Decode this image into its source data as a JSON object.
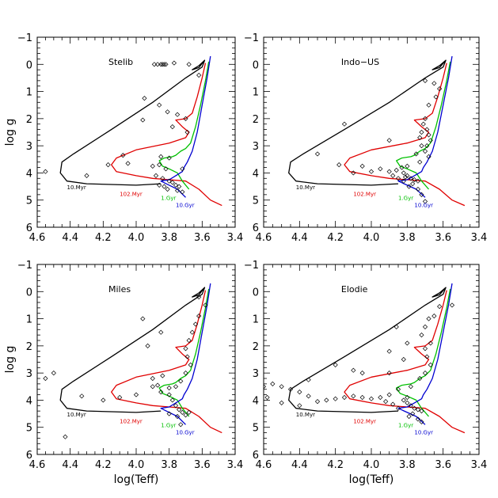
{
  "chart_data": {
    "type": "scatter",
    "xlabel": "log(Teff)",
    "ylabel": "log g",
    "xlim": [
      4.6,
      3.4
    ],
    "ylim": [
      -1,
      6
    ],
    "xticks": [
      "4.6",
      "4.4",
      "4.2",
      "4.0",
      "3.8",
      "3.6",
      "3.4"
    ],
    "yticks": [
      "−1",
      "0",
      "1",
      "2",
      "3",
      "4",
      "5",
      "6"
    ],
    "isochrones": [
      {
        "name": "10.Myr",
        "color": "#000000",
        "points": [
          [
            3.585,
            -0.15
          ],
          [
            3.62,
            0.05
          ],
          [
            3.66,
            0.2
          ],
          [
            3.62,
            0.12
          ],
          [
            3.585,
            -0.15
          ],
          [
            3.6,
            0.1
          ],
          [
            3.65,
            0.3
          ],
          [
            3.7,
            0.5
          ],
          [
            3.9,
            1.4
          ],
          [
            4.15,
            2.4
          ],
          [
            4.38,
            3.3
          ],
          [
            4.45,
            3.6
          ],
          [
            4.46,
            4.0
          ],
          [
            4.42,
            4.3
          ],
          [
            4.3,
            4.4
          ],
          [
            4.0,
            4.45
          ],
          [
            3.85,
            4.4
          ]
        ]
      },
      {
        "name": "102.Myr",
        "color": "#e00000",
        "points": [
          [
            3.58,
            -0.05
          ],
          [
            3.6,
            0.5
          ],
          [
            3.63,
            1.2
          ],
          [
            3.66,
            1.8
          ],
          [
            3.7,
            2.0
          ],
          [
            3.76,
            2.05
          ],
          [
            3.72,
            2.3
          ],
          [
            3.68,
            2.5
          ],
          [
            3.7,
            2.7
          ],
          [
            3.8,
            2.9
          ],
          [
            4.0,
            3.15
          ],
          [
            4.12,
            3.45
          ],
          [
            4.15,
            3.7
          ],
          [
            4.12,
            3.95
          ],
          [
            4.0,
            4.1
          ],
          [
            3.9,
            4.2
          ],
          [
            3.8,
            4.25
          ],
          [
            3.7,
            4.3
          ],
          [
            3.62,
            4.6
          ],
          [
            3.55,
            5.0
          ],
          [
            3.48,
            5.2
          ]
        ]
      },
      {
        "name": "1.Gyr",
        "color": "#00c000",
        "points": [
          [
            3.56,
            -0.1
          ],
          [
            3.58,
            0.6
          ],
          [
            3.61,
            1.5
          ],
          [
            3.64,
            2.3
          ],
          [
            3.67,
            2.9
          ],
          [
            3.7,
            3.1
          ],
          [
            3.73,
            3.2
          ],
          [
            3.76,
            3.35
          ],
          [
            3.78,
            3.4
          ],
          [
            3.83,
            3.45
          ],
          [
            3.86,
            3.55
          ],
          [
            3.84,
            3.75
          ],
          [
            3.8,
            3.85
          ],
          [
            3.75,
            4.0
          ],
          [
            3.72,
            4.3
          ],
          [
            3.68,
            4.6
          ]
        ]
      },
      {
        "name": "10.Gyr",
        "color": "#0000d0",
        "points": [
          [
            3.55,
            -0.3
          ],
          [
            3.57,
            0.5
          ],
          [
            3.6,
            1.5
          ],
          [
            3.63,
            2.5
          ],
          [
            3.66,
            3.2
          ],
          [
            3.69,
            3.6
          ],
          [
            3.71,
            3.8
          ],
          [
            3.72,
            3.95
          ],
          [
            3.76,
            4.1
          ],
          [
            3.8,
            4.25
          ],
          [
            3.85,
            4.3
          ],
          [
            3.8,
            4.45
          ],
          [
            3.75,
            4.6
          ],
          [
            3.7,
            4.9
          ]
        ]
      }
    ],
    "panels": [
      {
        "title": "Stelib",
        "points": [
          [
            3.89,
            0.0
          ],
          [
            3.87,
            0.0
          ],
          [
            3.85,
            0.0
          ],
          [
            3.84,
            0.0
          ],
          [
            3.83,
            0.0
          ],
          [
            3.82,
            0.0
          ],
          [
            3.77,
            -0.05
          ],
          [
            3.68,
            0.0
          ],
          [
            3.62,
            0.4
          ],
          [
            3.95,
            1.25
          ],
          [
            3.86,
            1.5
          ],
          [
            3.81,
            1.75
          ],
          [
            3.75,
            1.85
          ],
          [
            3.7,
            2.0
          ],
          [
            3.96,
            2.05
          ],
          [
            3.78,
            2.3
          ],
          [
            3.69,
            2.5
          ],
          [
            4.08,
            3.35
          ],
          [
            3.85,
            3.4
          ],
          [
            3.8,
            3.45
          ],
          [
            4.17,
            3.7
          ],
          [
            4.05,
            3.65
          ],
          [
            3.9,
            3.75
          ],
          [
            3.86,
            3.7
          ],
          [
            3.82,
            3.85
          ],
          [
            3.72,
            3.85
          ],
          [
            4.55,
            3.95
          ],
          [
            4.3,
            4.1
          ],
          [
            3.88,
            4.1
          ],
          [
            3.84,
            4.2
          ],
          [
            3.8,
            4.3
          ],
          [
            3.78,
            4.35
          ],
          [
            3.76,
            4.45
          ],
          [
            3.74,
            4.5
          ],
          [
            3.81,
            4.6
          ],
          [
            3.75,
            4.65
          ],
          [
            3.72,
            4.7
          ],
          [
            3.86,
            4.45
          ],
          [
            3.83,
            4.5
          ]
        ]
      },
      {
        "title": "Indo−US",
        "points": [
          [
            3.7,
            0.6
          ],
          [
            3.65,
            0.7
          ],
          [
            3.62,
            0.9
          ],
          [
            3.64,
            1.2
          ],
          [
            3.68,
            1.5
          ],
          [
            3.7,
            2.0
          ],
          [
            3.71,
            2.2
          ],
          [
            3.69,
            2.4
          ],
          [
            3.68,
            2.6
          ],
          [
            3.67,
            2.8
          ],
          [
            3.69,
            3.0
          ],
          [
            3.7,
            3.2
          ],
          [
            3.68,
            3.4
          ],
          [
            3.72,
            2.5
          ],
          [
            3.73,
            2.7
          ],
          [
            3.72,
            3.0
          ],
          [
            3.75,
            3.3
          ],
          [
            3.73,
            3.6
          ],
          [
            3.8,
            3.75
          ],
          [
            3.83,
            3.8
          ],
          [
            3.86,
            3.9
          ],
          [
            3.9,
            3.95
          ],
          [
            3.95,
            3.85
          ],
          [
            4.0,
            3.95
          ],
          [
            4.05,
            3.75
          ],
          [
            4.1,
            4.0
          ],
          [
            4.18,
            3.7
          ],
          [
            4.3,
            3.3
          ],
          [
            4.15,
            2.2
          ],
          [
            3.9,
            2.8
          ],
          [
            3.82,
            4.0
          ],
          [
            3.8,
            4.1
          ],
          [
            3.78,
            4.2
          ],
          [
            3.76,
            4.25
          ],
          [
            3.74,
            4.3
          ],
          [
            3.77,
            4.4
          ],
          [
            3.79,
            4.5
          ],
          [
            3.74,
            4.6
          ],
          [
            3.72,
            4.8
          ],
          [
            3.7,
            5.05
          ],
          [
            3.82,
            4.3
          ],
          [
            3.85,
            4.2
          ],
          [
            3.88,
            4.1
          ],
          [
            3.81,
            4.15
          ]
        ]
      },
      {
        "title": "Miles",
        "points": [
          [
            3.62,
            0.2
          ],
          [
            3.58,
            0.5
          ],
          [
            3.62,
            0.9
          ],
          [
            3.64,
            1.2
          ],
          [
            3.66,
            1.5
          ],
          [
            3.68,
            1.8
          ],
          [
            3.7,
            2.1
          ],
          [
            3.69,
            2.4
          ],
          [
            3.67,
            2.7
          ],
          [
            3.7,
            3.0
          ],
          [
            3.73,
            3.3
          ],
          [
            3.76,
            3.5
          ],
          [
            3.8,
            3.55
          ],
          [
            3.85,
            3.7
          ],
          [
            3.9,
            3.5
          ],
          [
            4.0,
            3.8
          ],
          [
            4.1,
            3.9
          ],
          [
            4.2,
            4.0
          ],
          [
            4.33,
            3.85
          ],
          [
            4.5,
            3.0
          ],
          [
            4.55,
            3.2
          ],
          [
            3.96,
            1.0
          ],
          [
            3.93,
            2.0
          ],
          [
            3.85,
            1.5
          ],
          [
            3.84,
            3.1
          ],
          [
            3.8,
            3.8
          ],
          [
            3.78,
            4.0
          ],
          [
            3.76,
            4.2
          ],
          [
            3.74,
            4.35
          ],
          [
            3.72,
            4.45
          ],
          [
            3.7,
            4.55
          ],
          [
            3.68,
            4.45
          ],
          [
            3.8,
            4.5
          ],
          [
            3.75,
            4.6
          ],
          [
            3.73,
            4.9
          ],
          [
            4.43,
            5.35
          ],
          [
            3.87,
            3.45
          ],
          [
            3.9,
            3.2
          ]
        ]
      },
      {
        "title": "Elodie",
        "points": [
          [
            3.55,
            0.5
          ],
          [
            3.62,
            0.55
          ],
          [
            3.65,
            0.9
          ],
          [
            3.68,
            1.0
          ],
          [
            3.7,
            1.3
          ],
          [
            3.72,
            1.6
          ],
          [
            3.67,
            1.9
          ],
          [
            3.7,
            2.1
          ],
          [
            3.69,
            2.4
          ],
          [
            3.67,
            2.7
          ],
          [
            3.7,
            3.0
          ],
          [
            3.73,
            3.2
          ],
          [
            3.78,
            3.5
          ],
          [
            3.85,
            3.6
          ],
          [
            3.9,
            3.8
          ],
          [
            3.95,
            3.9
          ],
          [
            4.0,
            3.95
          ],
          [
            4.05,
            3.9
          ],
          [
            4.1,
            3.85
          ],
          [
            4.15,
            3.9
          ],
          [
            4.2,
            3.95
          ],
          [
            4.25,
            4.0
          ],
          [
            4.3,
            4.05
          ],
          [
            4.35,
            3.85
          ],
          [
            4.4,
            3.7
          ],
          [
            4.45,
            3.6
          ],
          [
            4.5,
            3.5
          ],
          [
            4.55,
            3.4
          ],
          [
            4.6,
            3.5
          ],
          [
            4.62,
            3.7
          ],
          [
            4.58,
            3.9
          ],
          [
            4.5,
            4.1
          ],
          [
            4.4,
            4.2
          ],
          [
            3.8,
            3.9
          ],
          [
            3.82,
            4.0
          ],
          [
            3.8,
            4.1
          ],
          [
            3.78,
            4.2
          ],
          [
            3.76,
            4.3
          ],
          [
            3.74,
            4.35
          ],
          [
            3.72,
            4.4
          ],
          [
            3.77,
            4.5
          ],
          [
            3.79,
            4.6
          ],
          [
            3.74,
            4.7
          ],
          [
            3.72,
            4.8
          ],
          [
            3.85,
            4.3
          ],
          [
            3.88,
            4.15
          ],
          [
            3.92,
            4.05
          ],
          [
            4.05,
            3.0
          ],
          [
            4.1,
            2.9
          ],
          [
            3.9,
            3.0
          ],
          [
            3.82,
            2.5
          ],
          [
            3.8,
            1.9
          ],
          [
            3.86,
            1.3
          ],
          [
            3.9,
            2.2
          ],
          [
            4.2,
            2.7
          ],
          [
            4.35,
            3.25
          ]
        ]
      }
    ]
  }
}
